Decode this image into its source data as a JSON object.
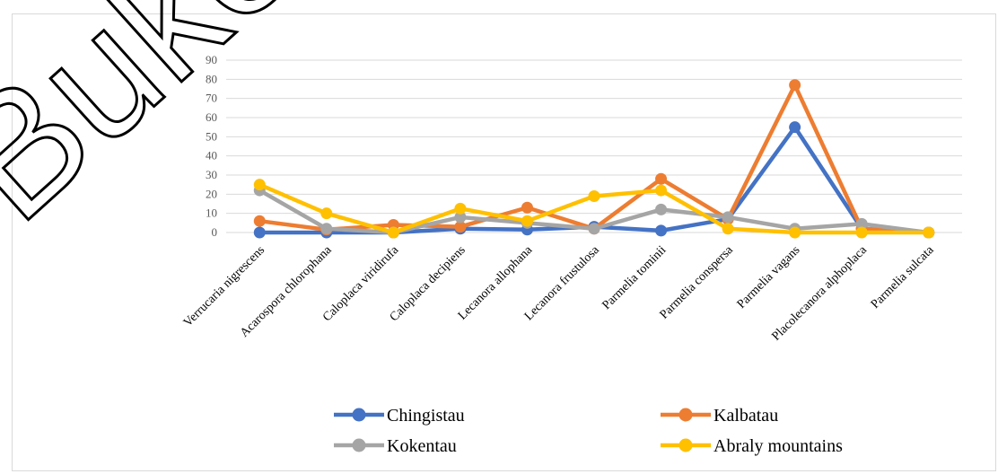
{
  "watermark": "Buke",
  "chart_data": {
    "type": "line",
    "categories": [
      "Verrucaria nigrescens",
      "Acarospora chlorophana",
      "Caloplaca  viridirufa",
      "Caloplaca    decipiens",
      "Lecanora allophana",
      "Lecanora frustulosa",
      "Parmelia tominii",
      "Parmelia conspersa",
      "Parmelia vagans",
      "Placolecanora alphoplaca",
      "Parmelia sulcata"
    ],
    "ylim": [
      0,
      90
    ],
    "yticks": [
      "0",
      "10",
      "20",
      "30",
      "40",
      "50",
      "60",
      "70",
      "80",
      "90"
    ],
    "grid": true,
    "legend_position": "bottom",
    "series": [
      {
        "name": "Chingistau",
        "color": "#4472C4",
        "values": [
          0,
          0,
          0,
          2,
          1.5,
          3,
          1,
          7,
          55,
          2,
          0
        ]
      },
      {
        "name": "Kalbatau",
        "color": "#ED7D31",
        "values": [
          6,
          1.5,
          4,
          3,
          13,
          2,
          28,
          7,
          77,
          2,
          0
        ]
      },
      {
        "name": "Kokentau",
        "color": "#A5A5A5",
        "values": [
          22,
          2,
          0,
          8,
          5,
          2,
          12,
          8,
          2,
          4.5,
          0
        ]
      },
      {
        "name": "Abraly mountains",
        "color": "#FFC000",
        "values": [
          25,
          10,
          0,
          12.5,
          6,
          19,
          22,
          2,
          0,
          0,
          0
        ]
      }
    ]
  }
}
